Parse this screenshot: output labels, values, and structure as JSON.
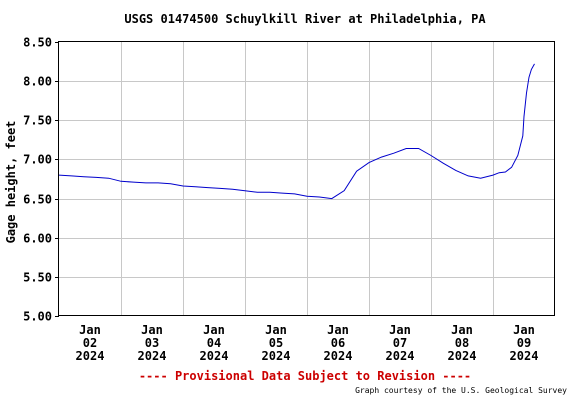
{
  "chart_data": {
    "type": "line",
    "title": "USGS 01474500 Schuylkill River at Philadelphia, PA",
    "xlabel": "",
    "ylabel": "Gage height, feet",
    "ylim": [
      5.0,
      8.5
    ],
    "yticks": [
      5.0,
      5.5,
      6.0,
      6.5,
      7.0,
      7.5,
      8.0,
      8.5
    ],
    "ytick_labels": [
      "5.00",
      "5.50",
      "6.00",
      "6.50",
      "7.00",
      "7.50",
      "8.00",
      "8.50"
    ],
    "xlim_days": [
      0,
      8
    ],
    "xtick_labels": [
      [
        "Jan",
        "02",
        "2024"
      ],
      [
        "Jan",
        "03",
        "2024"
      ],
      [
        "Jan",
        "04",
        "2024"
      ],
      [
        "Jan",
        "05",
        "2024"
      ],
      [
        "Jan",
        "06",
        "2024"
      ],
      [
        "Jan",
        "07",
        "2024"
      ],
      [
        "Jan",
        "08",
        "2024"
      ],
      [
        "Jan",
        "09",
        "2024"
      ]
    ],
    "grid": true,
    "line_color": "#0000cc",
    "series": [
      {
        "x": [
          0.0,
          0.2,
          0.4,
          0.6,
          0.8,
          1.0,
          1.2,
          1.4,
          1.6,
          1.8,
          2.0,
          2.2,
          2.4,
          2.6,
          2.8,
          3.0,
          3.2,
          3.4,
          3.6,
          3.8,
          4.0,
          4.2,
          4.4,
          4.6,
          4.8,
          5.0,
          5.2,
          5.4,
          5.6,
          5.8,
          6.0,
          6.2,
          6.4,
          6.6,
          6.8,
          7.0,
          7.1,
          7.2,
          7.3,
          7.4,
          7.48,
          7.5,
          7.54,
          7.58,
          7.62,
          7.67
        ],
        "y": [
          6.8,
          6.79,
          6.78,
          6.77,
          6.76,
          6.72,
          6.71,
          6.7,
          6.7,
          6.69,
          6.66,
          6.65,
          6.64,
          6.63,
          6.62,
          6.6,
          6.58,
          6.58,
          6.57,
          6.56,
          6.53,
          6.52,
          6.5,
          6.6,
          6.85,
          6.96,
          7.03,
          7.08,
          7.14,
          7.14,
          7.05,
          6.95,
          6.86,
          6.79,
          6.76,
          6.8,
          6.83,
          6.84,
          6.9,
          7.05,
          7.3,
          7.55,
          7.85,
          8.05,
          8.15,
          8.22
        ]
      }
    ]
  },
  "subtitle_provisional": "---- Provisional Data Subject to Revision ----",
  "credit": "Graph courtesy of the U.S. Geological Survey",
  "colors": {
    "line": "#0000cc",
    "grid": "#c8c8c8",
    "provisional": "#cc0000",
    "frame": "#000000"
  }
}
